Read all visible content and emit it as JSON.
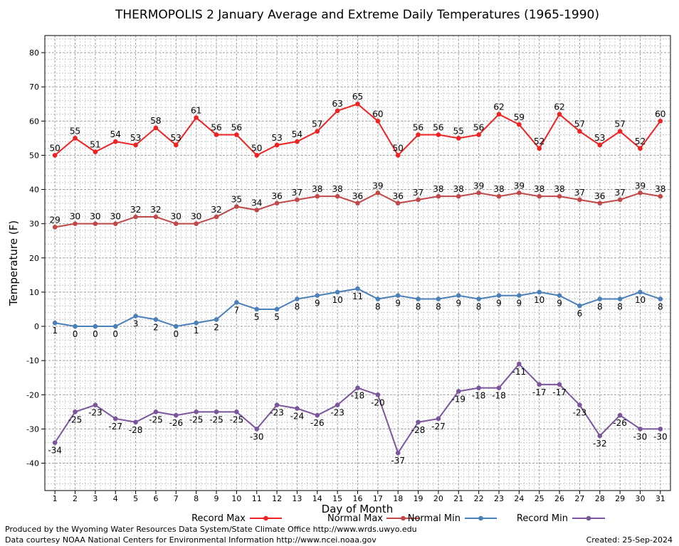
{
  "chart_data": {
    "type": "line",
    "title": "THERMOPOLIS 2 January Average and Extreme Daily Temperatures (1965-1990)",
    "xlabel": "Day of Month",
    "ylabel": "Temperature (F)",
    "ylim": [
      -48,
      85
    ],
    "xlim": [
      0.5,
      31.5
    ],
    "y_ticks": [
      -40,
      -30,
      -20,
      -10,
      0,
      10,
      20,
      30,
      40,
      50,
      60,
      70,
      80
    ],
    "x": [
      1,
      2,
      3,
      4,
      5,
      6,
      7,
      8,
      9,
      10,
      11,
      12,
      13,
      14,
      15,
      16,
      17,
      18,
      19,
      20,
      21,
      22,
      23,
      24,
      25,
      26,
      27,
      28,
      29,
      30,
      31
    ],
    "grid": true,
    "legend_position": "bottom",
    "series": [
      {
        "name": "Record Max",
        "color": "#ee2222",
        "label_pos": "above",
        "values": [
          50,
          55,
          51,
          54,
          53,
          58,
          53,
          61,
          56,
          56,
          50,
          53,
          54,
          57,
          63,
          65,
          60,
          50,
          56,
          56,
          55,
          56,
          62,
          59,
          52,
          62,
          57,
          53,
          57,
          52,
          60
        ]
      },
      {
        "name": "Normal Max",
        "color": "#c04848",
        "label_pos": "above",
        "values": [
          29,
          30,
          30,
          30,
          32,
          32,
          30,
          30,
          32,
          35,
          34,
          36,
          37,
          38,
          38,
          36,
          39,
          36,
          37,
          38,
          38,
          39,
          38,
          39,
          38,
          38,
          37,
          36,
          37,
          39,
          38
        ]
      },
      {
        "name": "Normal Min",
        "color": "#4a7fb8",
        "label_pos": "below",
        "values": [
          1,
          0,
          0,
          0,
          3,
          2,
          0,
          1,
          2,
          7,
          5,
          5,
          8,
          9,
          10,
          11,
          8,
          9,
          8,
          8,
          9,
          8,
          9,
          9,
          10,
          9,
          6,
          8,
          8,
          10,
          8
        ]
      },
      {
        "name": "Record Min",
        "color": "#7b559c",
        "label_pos": "below",
        "values": [
          -34,
          -25,
          -23,
          -27,
          -28,
          -25,
          -26,
          -25,
          -25,
          -25,
          -30,
          -23,
          -24,
          -26,
          -23,
          -18,
          -20,
          -37,
          -28,
          -27,
          -19,
          -18,
          -18,
          -11,
          -17,
          -17,
          -23,
          -32,
          -26,
          -30,
          -30
        ]
      }
    ]
  },
  "footer": {
    "produced_by": "Produced by the Wyoming Water Resources Data System/State Climate Office http://www.wrds.uwyo.edu",
    "courtesy": "Data courtesy NOAA National Centers for Environmental Information http://www.ncei.noaa.gov",
    "created": "Created:  25-Sep-2024"
  }
}
